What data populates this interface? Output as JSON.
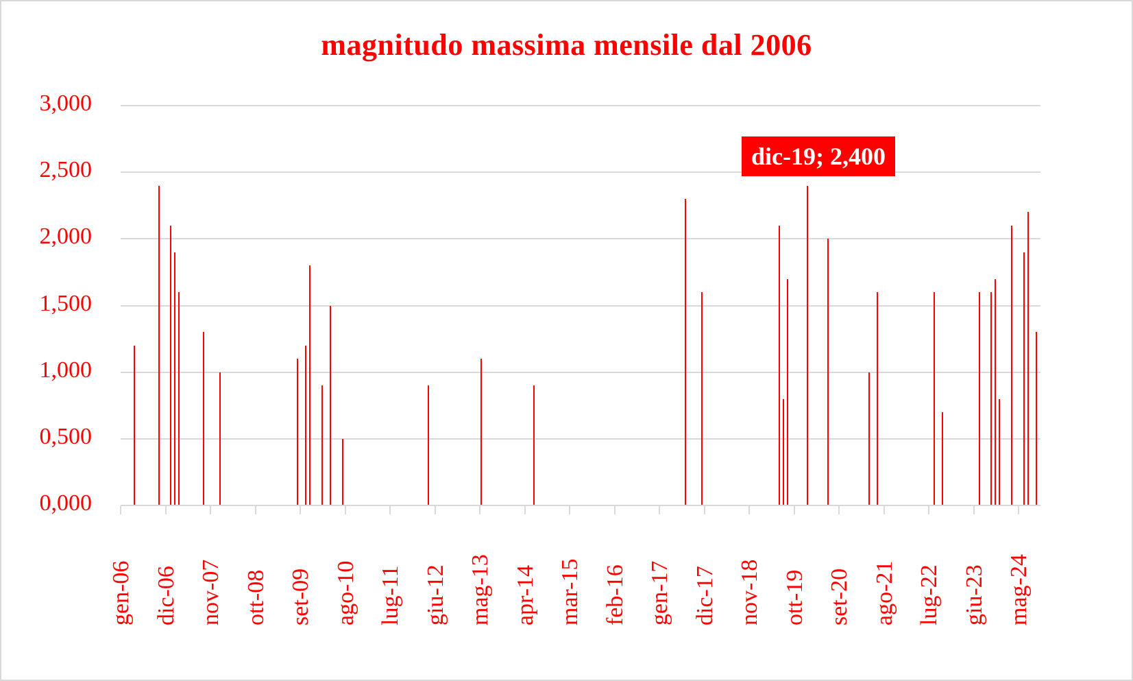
{
  "chart_data": {
    "type": "bar",
    "title": "magnitudo massima mensile dal 2006",
    "xlabel": "",
    "ylabel": "",
    "ylim": [
      0,
      3
    ],
    "y_ticks": [
      "0,000",
      "0,500",
      "1,000",
      "1,500",
      "2,000",
      "2,500",
      "3,000"
    ],
    "y_tick_values": [
      0,
      0.5,
      1.0,
      1.5,
      2.0,
      2.5,
      3.0
    ],
    "grid": true,
    "legend": "none",
    "x_tick_labels": [
      "gen-06",
      "dic-06",
      "nov-07",
      "ott-08",
      "set-09",
      "ago-10",
      "lug-11",
      "giu-12",
      "mag-13",
      "apr-14",
      "mar-15",
      "feb-16",
      "gen-17",
      "dic-17",
      "nov-18",
      "ott-19",
      "set-20",
      "ago-21",
      "lug-22",
      "giu-23",
      "mag-24"
    ],
    "x_tick_interval_months": 11,
    "start_month": "gen-06",
    "total_months": 226,
    "color": "#ff0000",
    "points": [
      {
        "month": "apr-06",
        "index": 3,
        "value": 1.2
      },
      {
        "month": "ott-06",
        "index": 9,
        "value": 2.4
      },
      {
        "month": "gen-07",
        "index": 12,
        "value": 2.1
      },
      {
        "month": "feb-07",
        "index": 13,
        "value": 1.9
      },
      {
        "month": "mar-07",
        "index": 14,
        "value": 1.6
      },
      {
        "month": "set-07",
        "index": 20,
        "value": 1.3
      },
      {
        "month": "gen-08",
        "index": 24,
        "value": 1.0
      },
      {
        "month": "ago-09",
        "index": 43,
        "value": 1.1
      },
      {
        "month": "ott-09",
        "index": 45,
        "value": 1.2
      },
      {
        "month": "nov-09",
        "index": 46,
        "value": 1.8
      },
      {
        "month": "feb-10",
        "index": 49,
        "value": 0.9
      },
      {
        "month": "apr-10",
        "index": 51,
        "value": 1.5
      },
      {
        "month": "lug-10",
        "index": 54,
        "value": 0.5
      },
      {
        "month": "apr-12",
        "index": 75,
        "value": 0.9
      },
      {
        "month": "mag-13",
        "index": 88,
        "value": 1.1
      },
      {
        "month": "giu-14",
        "index": 101,
        "value": 0.9
      },
      {
        "month": "lug-17",
        "index": 138,
        "value": 2.3
      },
      {
        "month": "nov-17",
        "index": 142,
        "value": 1.6
      },
      {
        "month": "giu-19",
        "index": 161,
        "value": 2.1
      },
      {
        "month": "lug-19",
        "index": 162,
        "value": 0.8
      },
      {
        "month": "ago-19",
        "index": 163,
        "value": 1.7
      },
      {
        "month": "dic-19",
        "index": 168,
        "value": 2.4
      },
      {
        "month": "mag-20",
        "index": 173,
        "value": 2.0
      },
      {
        "month": "mar-21",
        "index": 183,
        "value": 1.0
      },
      {
        "month": "mag-21",
        "index": 185,
        "value": 1.6
      },
      {
        "month": "lug-22",
        "index": 199,
        "value": 1.6
      },
      {
        "month": "set-22",
        "index": 201,
        "value": 0.7
      },
      {
        "month": "giu-23",
        "index": 210,
        "value": 1.6
      },
      {
        "month": "set-23",
        "index": 213,
        "value": 1.6
      },
      {
        "month": "ott-23",
        "index": 214,
        "value": 1.7
      },
      {
        "month": "nov-23",
        "index": 215,
        "value": 0.8
      },
      {
        "month": "feb-24",
        "index": 218,
        "value": 2.1
      },
      {
        "month": "mag-24",
        "index": 221,
        "value": 1.9
      },
      {
        "month": "giu-24",
        "index": 222,
        "value": 2.2
      },
      {
        "month": "ago-24",
        "index": 224,
        "value": 1.3
      }
    ],
    "annotations": [
      {
        "text": "dic-19; 2,400",
        "month": "dic-19",
        "value": 2.4
      }
    ]
  }
}
